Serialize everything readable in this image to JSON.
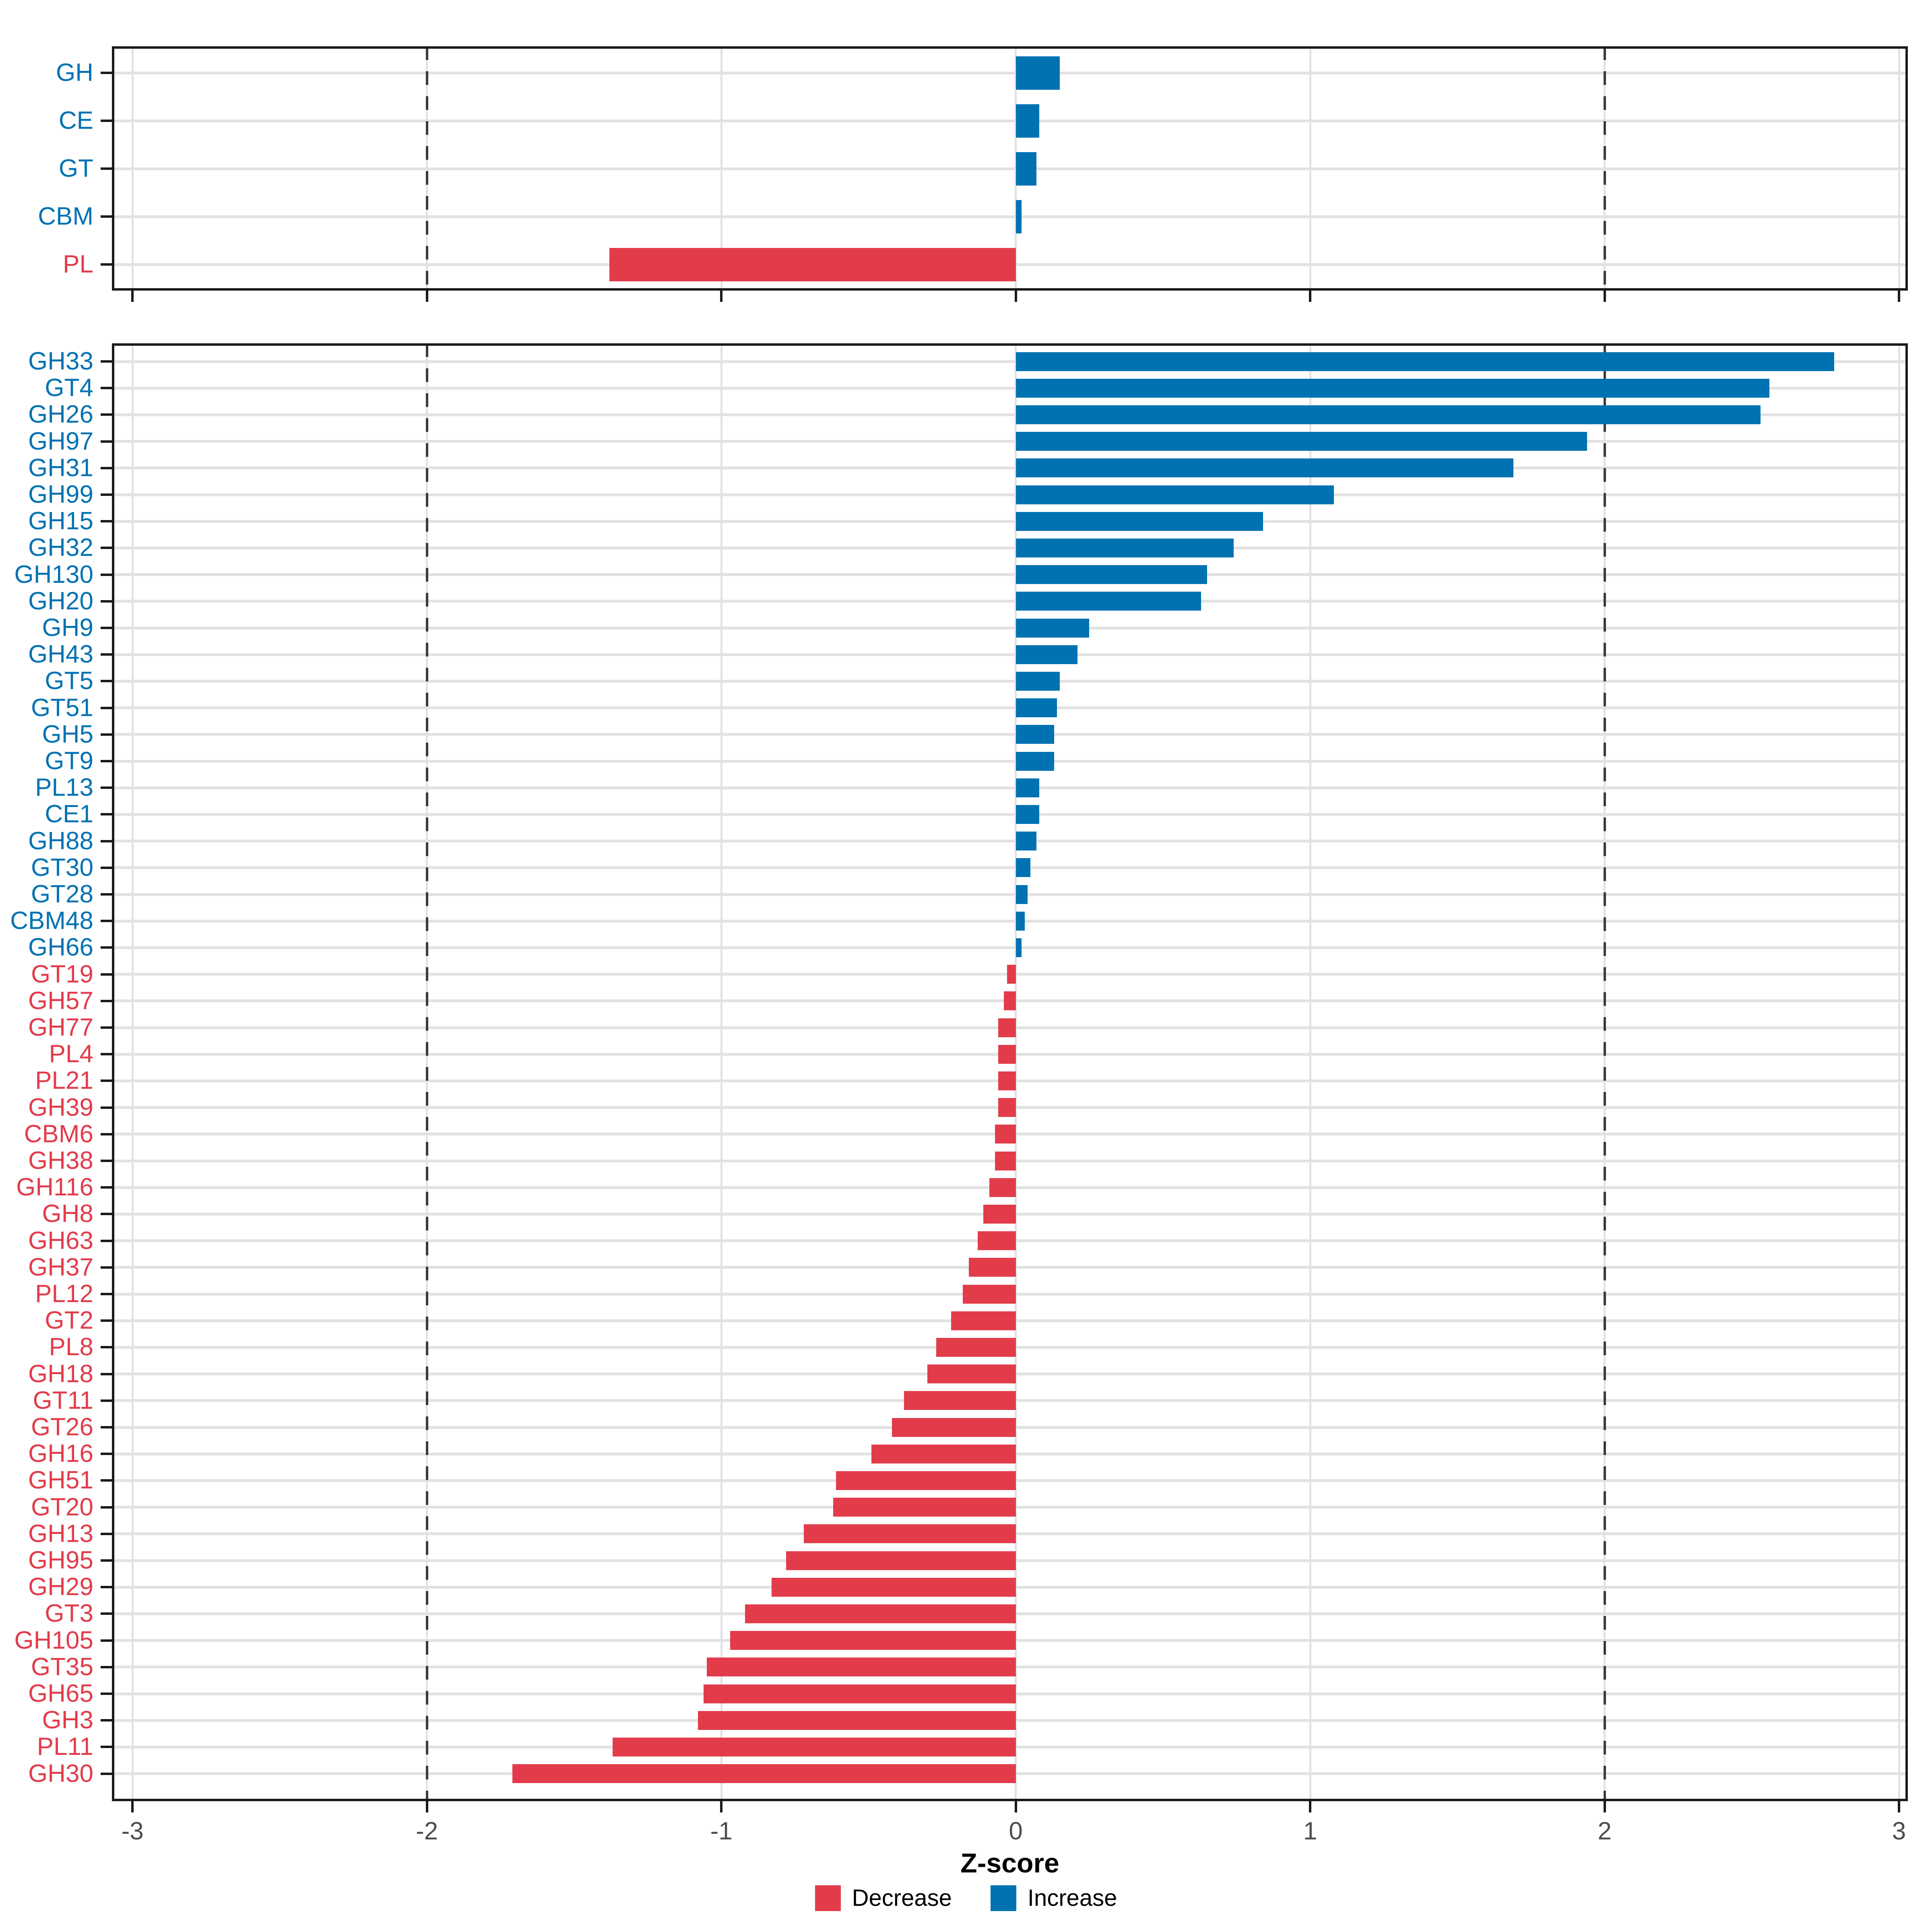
{
  "chart_data": [
    {
      "id": "class_level",
      "type": "bar",
      "orientation": "horizontal",
      "categories": [
        "GH",
        "CE",
        "GT",
        "CBM",
        "PL"
      ],
      "values": [
        0.15,
        0.08,
        0.07,
        0.02,
        -1.38
      ],
      "xlim": [
        -3.07,
        3.03
      ],
      "grid": true,
      "legend_position": "none"
    },
    {
      "id": "family_level",
      "type": "bar",
      "orientation": "horizontal",
      "categories": [
        "GH33",
        "GT4",
        "GH26",
        "GH97",
        "GH31",
        "GH99",
        "GH15",
        "GH32",
        "GH130",
        "GH20",
        "GH9",
        "GH43",
        "GT5",
        "GT51",
        "GH5",
        "GT9",
        "PL13",
        "CE1",
        "GH88",
        "GT30",
        "GT28",
        "CBM48",
        "GH66",
        "GT19",
        "GH57",
        "GH77",
        "PL4",
        "PL21",
        "GH39",
        "CBM6",
        "GH38",
        "GH116",
        "GH8",
        "GH63",
        "GH37",
        "PL12",
        "GT2",
        "PL8",
        "GH18",
        "GT11",
        "GT26",
        "GH16",
        "GH51",
        "GT20",
        "GH13",
        "GH95",
        "GH29",
        "GT3",
        "GH105",
        "GT35",
        "GH65",
        "GH3",
        "PL11",
        "GH30"
      ],
      "values": [
        2.78,
        2.56,
        2.53,
        1.94,
        1.69,
        1.08,
        0.84,
        0.74,
        0.65,
        0.63,
        0.25,
        0.21,
        0.15,
        0.14,
        0.13,
        0.13,
        0.08,
        0.08,
        0.07,
        0.05,
        0.04,
        0.03,
        0.02,
        -0.03,
        -0.04,
        -0.06,
        -0.06,
        -0.06,
        -0.06,
        -0.07,
        -0.07,
        -0.09,
        -0.11,
        -0.13,
        -0.16,
        -0.18,
        -0.22,
        -0.27,
        -0.3,
        -0.38,
        -0.42,
        -0.49,
        -0.61,
        -0.62,
        -0.72,
        -0.78,
        -0.83,
        -0.92,
        -0.97,
        -1.05,
        -1.06,
        -1.08,
        -1.37,
        -1.71
      ],
      "xlim": [
        -3.07,
        3.03
      ],
      "grid": true,
      "legend_position": "bottom"
    }
  ],
  "axis": {
    "xlabel": "Z-score",
    "ticks": [
      {
        "v": -3,
        "label": "-3"
      },
      {
        "v": -2,
        "label": "-2"
      },
      {
        "v": -1,
        "label": "-1"
      },
      {
        "v": 0,
        "label": "0"
      },
      {
        "v": 1,
        "label": "1"
      },
      {
        "v": 2,
        "label": "2"
      },
      {
        "v": 3,
        "label": "3"
      }
    ],
    "reference_lines_dashed": [
      -2,
      2
    ]
  },
  "legend": {
    "items": [
      {
        "label": "Decrease",
        "key": "decrease"
      },
      {
        "label": "Increase",
        "key": "increase"
      }
    ]
  },
  "colors": {
    "increase": "#0072B2",
    "decrease": "#E23C4B",
    "gridline": "#e2e2e2",
    "tick_label": "#4d4d4d",
    "border": "#1a1a1a"
  }
}
